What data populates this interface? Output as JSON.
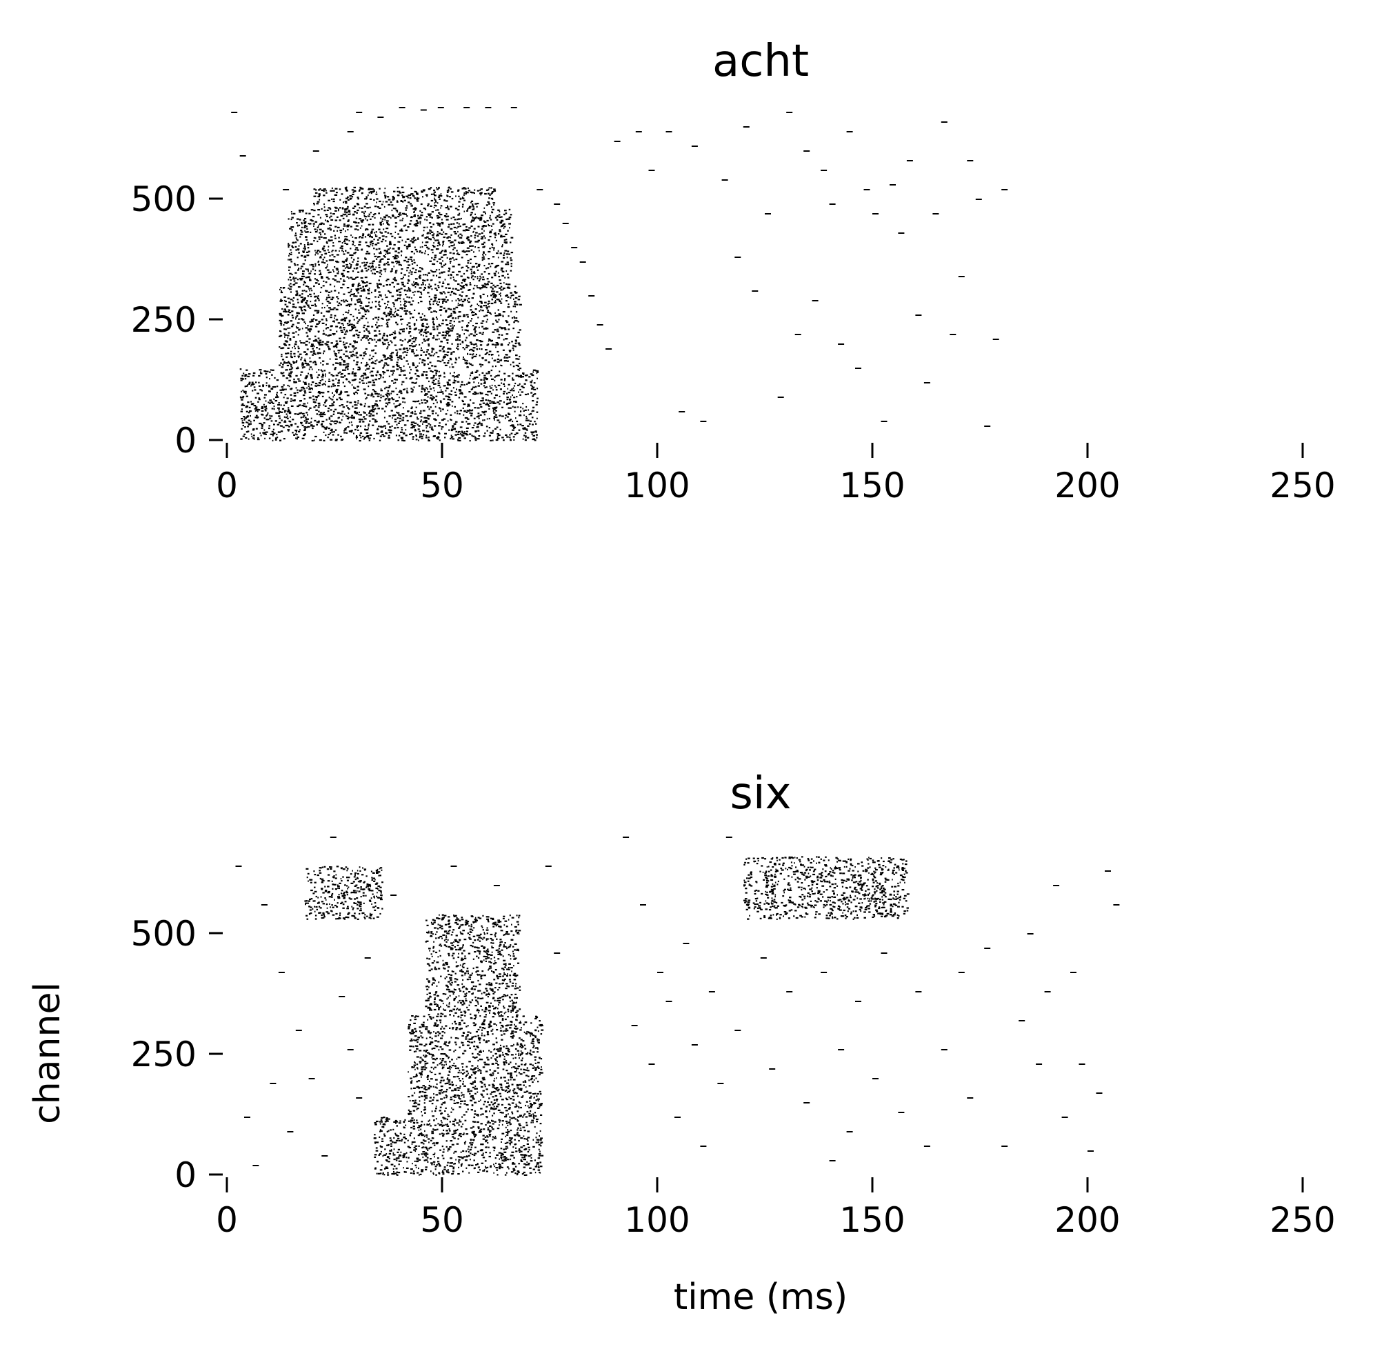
{
  "colors": {
    "background": "#ffffff",
    "spike": "#000000"
  },
  "chart_data": [
    {
      "type": "scatter",
      "title": "acht",
      "xlabel": "",
      "ylabel": "",
      "xlim": [
        0,
        250
      ],
      "ylim": [
        0,
        700
      ],
      "xticks": [
        0,
        50,
        100,
        150,
        200,
        250
      ],
      "yticks": [
        0,
        250,
        500
      ],
      "xtick_labels": [
        "0",
        "50",
        "100",
        "150",
        "200",
        "250"
      ],
      "ytick_labels": [
        "0",
        "250",
        "500"
      ],
      "grid": false,
      "legend": "none",
      "series": [
        {
          "values_description_free": true,
          "dense_clusters": [
            {
              "x_range": [
                3,
                72
              ],
              "y_range": [
                0,
                150
              ]
            },
            {
              "x_range": [
                12,
                68
              ],
              "y_range": [
                150,
                320
              ]
            },
            {
              "x_range": [
                14,
                66
              ],
              "y_range": [
                320,
                480
              ]
            },
            {
              "x_range": [
                20,
                62
              ],
              "y_range": [
                480,
                525
              ]
            }
          ],
          "points": [
            [
              1,
              680
            ],
            [
              3,
              590
            ],
            [
              13,
              520
            ],
            [
              20,
              600
            ],
            [
              28,
              640
            ],
            [
              30,
              680
            ],
            [
              35,
              670
            ],
            [
              40,
              690
            ],
            [
              45,
              685
            ],
            [
              49,
              690
            ],
            [
              55,
              690
            ],
            [
              60,
              690
            ],
            [
              66,
              690
            ],
            [
              72,
              520
            ],
            [
              76,
              490
            ],
            [
              78,
              450
            ],
            [
              80,
              400
            ],
            [
              82,
              370
            ],
            [
              84,
              300
            ],
            [
              86,
              240
            ],
            [
              88,
              190
            ],
            [
              90,
              620
            ],
            [
              95,
              640
            ],
            [
              98,
              560
            ],
            [
              102,
              640
            ],
            [
              105,
              60
            ],
            [
              108,
              610
            ],
            [
              110,
              40
            ],
            [
              115,
              540
            ],
            [
              118,
              380
            ],
            [
              120,
              650
            ],
            [
              122,
              310
            ],
            [
              125,
              470
            ],
            [
              128,
              90
            ],
            [
              130,
              680
            ],
            [
              132,
              220
            ],
            [
              134,
              600
            ],
            [
              136,
              290
            ],
            [
              138,
              560
            ],
            [
              140,
              490
            ],
            [
              142,
              200
            ],
            [
              144,
              640
            ],
            [
              146,
              150
            ],
            [
              148,
              520
            ],
            [
              150,
              470
            ],
            [
              152,
              40
            ],
            [
              154,
              530
            ],
            [
              156,
              430
            ],
            [
              158,
              580
            ],
            [
              160,
              260
            ],
            [
              162,
              120
            ],
            [
              164,
              470
            ],
            [
              166,
              660
            ],
            [
              168,
              220
            ],
            [
              170,
              340
            ],
            [
              172,
              580
            ],
            [
              174,
              500
            ],
            [
              176,
              30
            ],
            [
              178,
              210
            ],
            [
              180,
              520
            ]
          ]
        }
      ]
    },
    {
      "type": "scatter",
      "title": "six",
      "xlabel": "time (ms)",
      "ylabel": "channel",
      "xlim": [
        0,
        250
      ],
      "ylim": [
        0,
        700
      ],
      "xticks": [
        0,
        50,
        100,
        150,
        200,
        250
      ],
      "yticks": [
        0,
        250,
        500
      ],
      "xtick_labels": [
        "0",
        "50",
        "100",
        "150",
        "200",
        "250"
      ],
      "ytick_labels": [
        "0",
        "250",
        "500"
      ],
      "grid": false,
      "legend": "none",
      "series": [
        {
          "dense_clusters": [
            {
              "x_range": [
                34,
                73
              ],
              "y_range": [
                0,
                120
              ]
            },
            {
              "x_range": [
                42,
                73
              ],
              "y_range": [
                120,
                330
              ]
            },
            {
              "x_range": [
                46,
                68
              ],
              "y_range": [
                330,
                540
              ]
            },
            {
              "x_range": [
                18,
                36
              ],
              "y_range": [
                530,
                640
              ]
            },
            {
              "x_range": [
                120,
                158
              ],
              "y_range": [
                530,
                660
              ]
            }
          ],
          "points": [
            [
              2,
              640
            ],
            [
              4,
              120
            ],
            [
              6,
              20
            ],
            [
              8,
              560
            ],
            [
              10,
              190
            ],
            [
              12,
              420
            ],
            [
              14,
              90
            ],
            [
              16,
              300
            ],
            [
              19,
              200
            ],
            [
              22,
              40
            ],
            [
              24,
              700
            ],
            [
              26,
              370
            ],
            [
              28,
              260
            ],
            [
              30,
              160
            ],
            [
              32,
              450
            ],
            [
              38,
              580
            ],
            [
              52,
              640
            ],
            [
              62,
              600
            ],
            [
              74,
              640
            ],
            [
              76,
              460
            ],
            [
              92,
              700
            ],
            [
              94,
              310
            ],
            [
              96,
              560
            ],
            [
              98,
              230
            ],
            [
              100,
              420
            ],
            [
              102,
              360
            ],
            [
              104,
              120
            ],
            [
              106,
              480
            ],
            [
              108,
              270
            ],
            [
              110,
              60
            ],
            [
              112,
              380
            ],
            [
              114,
              190
            ],
            [
              116,
              700
            ],
            [
              118,
              300
            ],
            [
              124,
              450
            ],
            [
              126,
              220
            ],
            [
              130,
              380
            ],
            [
              134,
              150
            ],
            [
              138,
              420
            ],
            [
              140,
              30
            ],
            [
              142,
              260
            ],
            [
              144,
              90
            ],
            [
              146,
              360
            ],
            [
              150,
              200
            ],
            [
              152,
              460
            ],
            [
              156,
              130
            ],
            [
              160,
              380
            ],
            [
              162,
              60
            ],
            [
              166,
              260
            ],
            [
              170,
              420
            ],
            [
              172,
              160
            ],
            [
              176,
              470
            ],
            [
              180,
              60
            ],
            [
              184,
              320
            ],
            [
              186,
              500
            ],
            [
              188,
              230
            ],
            [
              190,
              380
            ],
            [
              192,
              600
            ],
            [
              194,
              120
            ],
            [
              196,
              420
            ],
            [
              198,
              230
            ],
            [
              200,
              50
            ],
            [
              202,
              170
            ],
            [
              204,
              630
            ],
            [
              206,
              560
            ]
          ]
        }
      ]
    }
  ]
}
